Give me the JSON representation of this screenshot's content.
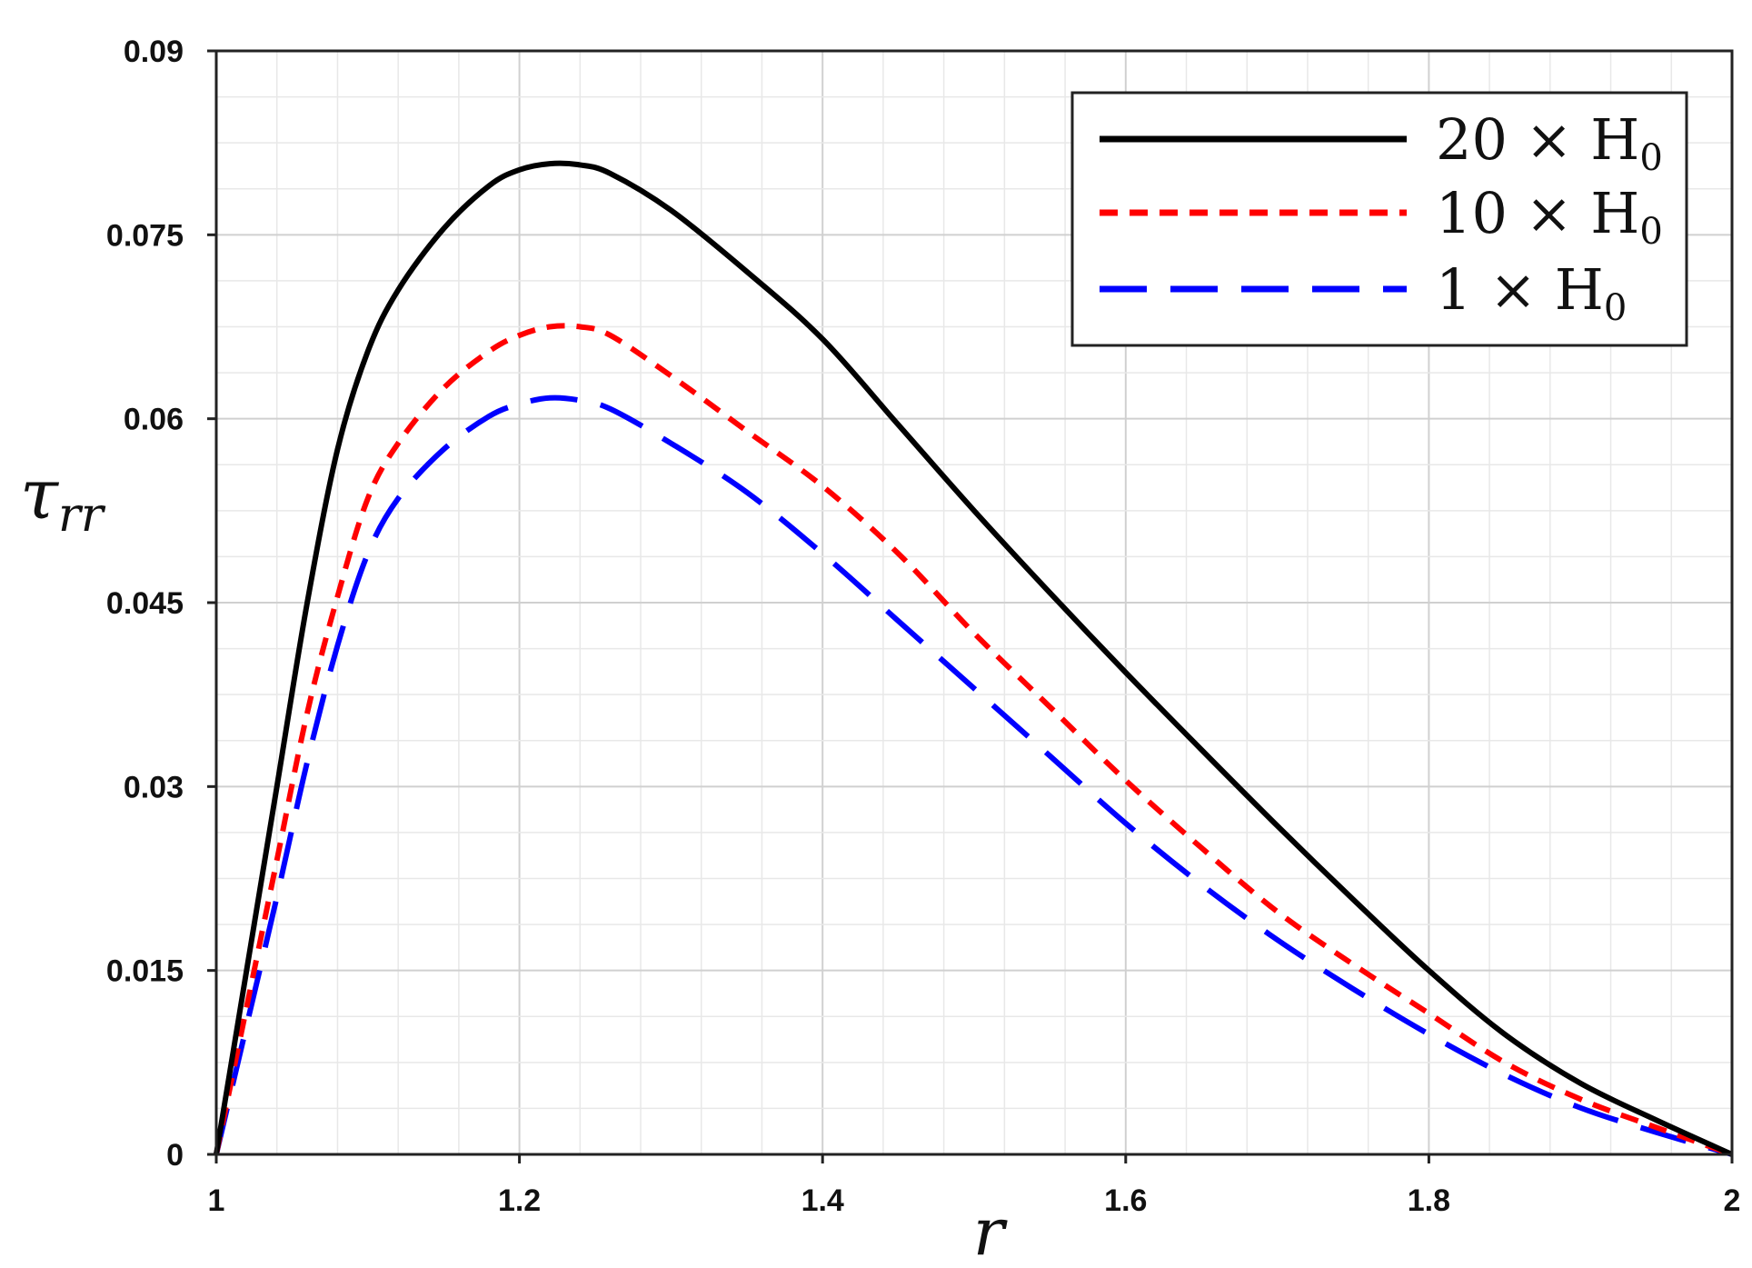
{
  "chart_data": {
    "type": "line",
    "title": "",
    "xlabel": "r",
    "ylabel": "τrr",
    "ylabel_main": "τ",
    "ylabel_sub": "rr",
    "xlim": [
      1,
      2
    ],
    "ylim": [
      0,
      0.09
    ],
    "x_ticks": [
      1,
      1.2,
      1.4,
      1.6,
      1.8,
      2
    ],
    "x_tick_labels": [
      "1",
      "1.2",
      "1.4",
      "1.6",
      "1.8",
      "2"
    ],
    "y_ticks": [
      0,
      0.015,
      0.03,
      0.045,
      0.06,
      0.075,
      0.09
    ],
    "y_tick_labels": [
      "0",
      "0.015",
      "0.03",
      "0.045",
      "0.06",
      "0.075",
      "0.09"
    ],
    "grid": true,
    "legend_position": "top-right",
    "series": [
      {
        "name": "20 × H0",
        "label_main": "20 × H",
        "label_sub": "0",
        "color": "#000000",
        "style": "solid",
        "x": [
          1,
          1.02,
          1.04,
          1.06,
          1.08,
          1.1,
          1.12,
          1.15,
          1.18,
          1.2,
          1.22,
          1.24,
          1.26,
          1.3,
          1.35,
          1.4,
          1.45,
          1.5,
          1.55,
          1.6,
          1.65,
          1.7,
          1.75,
          1.8,
          1.85,
          1.9,
          1.95,
          2
        ],
        "y": [
          0,
          0.015,
          0.03,
          0.045,
          0.0575,
          0.0655,
          0.0705,
          0.0755,
          0.079,
          0.0803,
          0.0808,
          0.0807,
          0.08,
          0.077,
          0.072,
          0.0665,
          0.0595,
          0.0525,
          0.0458,
          0.0393,
          0.033,
          0.0268,
          0.0208,
          0.015,
          0.0098,
          0.0058,
          0.0028,
          0
        ]
      },
      {
        "name": "10 × H0",
        "label_main": "10 × H",
        "label_sub": "0",
        "color": "#ff0000",
        "style": "short-dash",
        "x": [
          1,
          1.02,
          1.04,
          1.06,
          1.08,
          1.1,
          1.12,
          1.15,
          1.18,
          1.2,
          1.22,
          1.24,
          1.26,
          1.3,
          1.35,
          1.4,
          1.45,
          1.5,
          1.55,
          1.6,
          1.65,
          1.7,
          1.75,
          1.8,
          1.85,
          1.9,
          1.95,
          2
        ],
        "y": [
          0,
          0.012,
          0.024,
          0.036,
          0.0455,
          0.0535,
          0.058,
          0.0625,
          0.0655,
          0.0668,
          0.0675,
          0.0675,
          0.0668,
          0.0635,
          0.059,
          0.0545,
          0.049,
          0.0425,
          0.0365,
          0.0305,
          0.025,
          0.0198,
          0.0155,
          0.0115,
          0.0075,
          0.0045,
          0.0022,
          0
        ]
      },
      {
        "name": "1 × H0",
        "label_main": "1 × H",
        "label_sub": "0",
        "color": "#0000ff",
        "style": "long-dash",
        "x": [
          1,
          1.02,
          1.04,
          1.06,
          1.08,
          1.1,
          1.12,
          1.15,
          1.18,
          1.2,
          1.22,
          1.24,
          1.26,
          1.3,
          1.35,
          1.4,
          1.45,
          1.5,
          1.55,
          1.6,
          1.65,
          1.7,
          1.75,
          1.8,
          1.85,
          1.9,
          1.95,
          2
        ],
        "y": [
          0,
          0.0105,
          0.021,
          0.032,
          0.0415,
          0.049,
          0.0535,
          0.0575,
          0.0602,
          0.0612,
          0.0617,
          0.0615,
          0.0608,
          0.058,
          0.054,
          0.049,
          0.0435,
          0.038,
          0.0325,
          0.027,
          0.022,
          0.0175,
          0.0135,
          0.0098,
          0.0065,
          0.0038,
          0.0018,
          0
        ]
      }
    ]
  }
}
